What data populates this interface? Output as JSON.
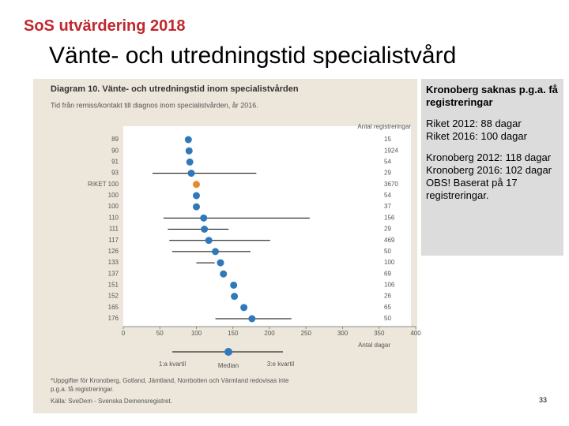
{
  "header": {
    "brand": "SoS utvärdering 2018",
    "title": "Vänte- och utredningstid specialistvård"
  },
  "notes": [
    [
      "Kronoberg saknas p.g.a. få registreringar"
    ],
    [
      "Riket 2012: 88 dagar",
      "Riket 2016: 100 dagar"
    ],
    [
      "Kronoberg 2012: 118 dagar",
      "Kronoberg 2016: 102 dagar",
      "OBS! Baserat på 17 registreringar."
    ]
  ],
  "page_number": "33",
  "chart_data": {
    "type": "dotplot",
    "title": "Diagram 10. Vänte- och utredningstid inom specialistvården",
    "subtitle": "Tid från remiss/kontakt till diagnos inom specialistvården, år 2016.",
    "x_label": "Antal dagar",
    "counts_label": "Antal registreringar",
    "categories": [
      "89",
      "90",
      "91",
      "93",
      "RIKET 100",
      "100",
      "100",
      "110",
      "111",
      "117",
      "126",
      "133",
      "137",
      "151",
      "152",
      "165",
      "176"
    ],
    "values": [
      89,
      90,
      91,
      93,
      100,
      100,
      100,
      110,
      111,
      117,
      126,
      133,
      137,
      151,
      152,
      165,
      176
    ],
    "lower_quartile": [
      null,
      null,
      null,
      40,
      null,
      null,
      null,
      55,
      61,
      63,
      67,
      100,
      null,
      null,
      null,
      null,
      126
    ],
    "upper_quartile": [
      null,
      null,
      null,
      182,
      null,
      null,
      null,
      255,
      144,
      201,
      174,
      125,
      null,
      null,
      null,
      null,
      230
    ],
    "counts": [
      15,
      1924,
      54,
      29,
      3670,
      54,
      37,
      156,
      29,
      469,
      50,
      100,
      69,
      106,
      26,
      65,
      50
    ],
    "point_colors": [
      "#2f78b9",
      "#2f78b9",
      "#2f78b9",
      "#2f78b9",
      "#e58a2e",
      "#2f78b9",
      "#2f78b9",
      "#2f78b9",
      "#2f78b9",
      "#2f78b9",
      "#2f78b9",
      "#2f78b9",
      "#2f78b9",
      "#2f78b9",
      "#2f78b9",
      "#2f78b9",
      "#2f78b9"
    ],
    "xlim": [
      0,
      400
    ],
    "xticks": [
      0,
      50,
      100,
      150,
      200,
      250,
      300,
      350,
      400
    ],
    "legend": [
      "1:a kvartil",
      "Median",
      "3:e kvartil"
    ],
    "footnote": [
      "*Uppgifter för Kronoberg, Gotland, Jämtland, Norrbotten och Värmland redovisas inte",
      "p.g.a. få registreringar.",
      "Källa: SveDem - Svenska Demensregistret."
    ]
  }
}
